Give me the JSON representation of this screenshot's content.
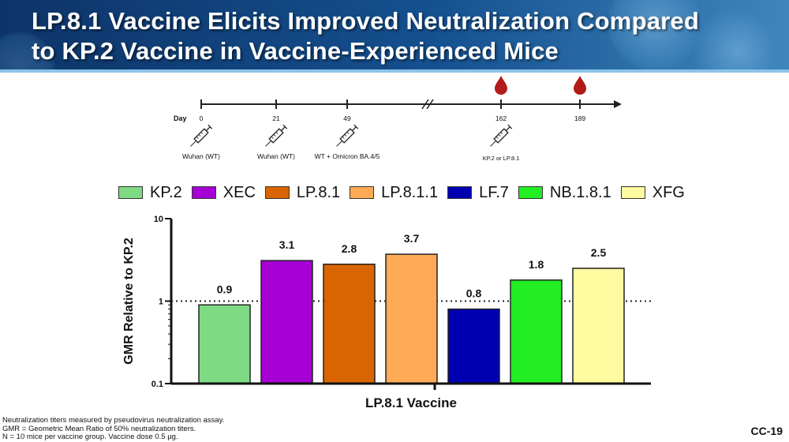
{
  "header": {
    "title_line1": "LP.8.1 Vaccine Elicits Improved Neutralization Compared",
    "title_line2": "to KP.2 Vaccine in Vaccine-Experienced Mice"
  },
  "timeline": {
    "axis_label": "Day",
    "points": [
      {
        "day": "0",
        "label": "Wuhan (WT)",
        "injection": true,
        "blood_draw": false
      },
      {
        "day": "21",
        "label": "Wuhan (WT)",
        "injection": true,
        "blood_draw": false
      },
      {
        "day": "49",
        "label": "WT + Omicron BA.4/5",
        "injection": true,
        "blood_draw": false
      },
      {
        "day": "162",
        "label": "KP.2 or LP.8.1",
        "injection": true,
        "blood_draw": true
      },
      {
        "day": "189",
        "label": "",
        "injection": false,
        "blood_draw": true
      }
    ],
    "icons": [
      "syringe-icon",
      "blood-drop-icon"
    ],
    "colors": {
      "line": "#222222",
      "drop": "#b31a1a"
    }
  },
  "chart_data": {
    "type": "bar",
    "title": "",
    "xlabel": "LP.8.1 Vaccine",
    "ylabel": "GMR Relative to KP.2",
    "scale": "log",
    "ylim": [
      0.1,
      10
    ],
    "yticks": [
      "10",
      "1",
      "0.1"
    ],
    "reference_line": 1,
    "categories": [
      "KP.2",
      "XEC",
      "LP.8.1",
      "LP.8.1.1",
      "LF.7",
      "NB.1.8.1",
      "XFG"
    ],
    "values": [
      0.9,
      3.1,
      2.8,
      3.7,
      0.8,
      1.8,
      2.5
    ],
    "data_labels": [
      "0.9",
      "3.1",
      "2.8",
      "3.7",
      "0.8",
      "1.8",
      "2.5"
    ],
    "colors": [
      "#7edb84",
      "#a600d4",
      "#d96500",
      "#ffaa55",
      "#0000b3",
      "#22ee22",
      "#fdfaa0"
    ],
    "legend_position": "top",
    "grid": false
  },
  "footnotes": [
    "Neutralization titers measured by pseudovirus neutralization assay.",
    "GMR = Geometric Mean Ratio of 50% neutralization titers.",
    "N = 10 mice per vaccine group. Vaccine dose 0.5 µg."
  ],
  "slide_id": "CC-19"
}
